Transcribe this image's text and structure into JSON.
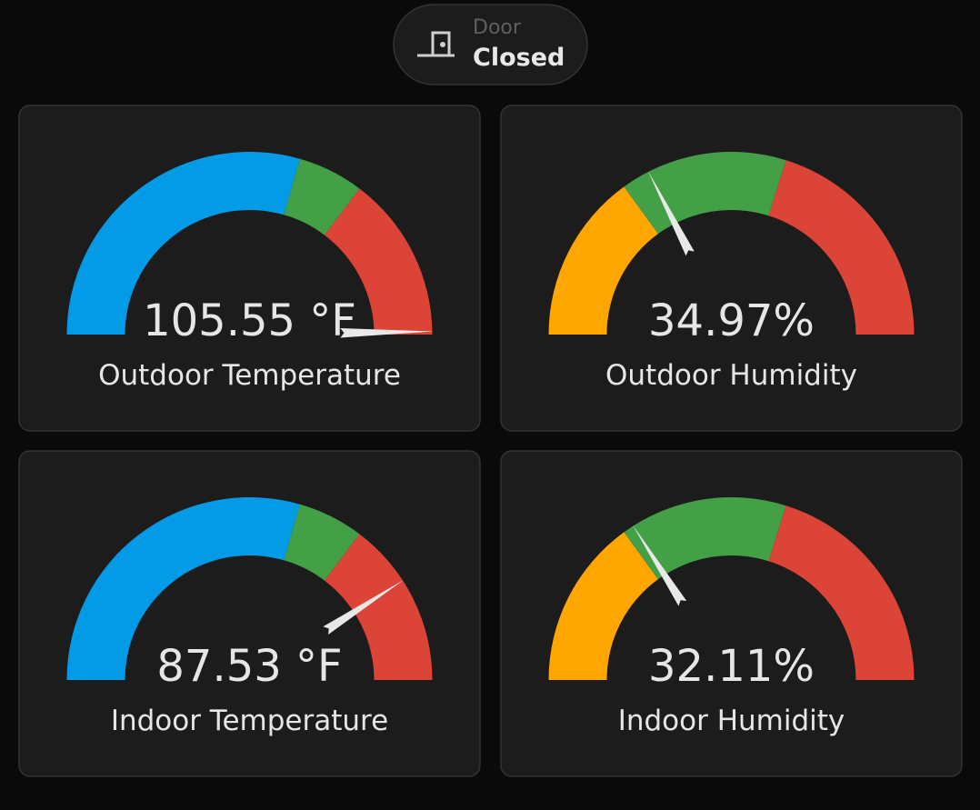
{
  "header": {
    "entity": {
      "name": "Door",
      "state": "Closed"
    }
  },
  "cards": [
    {
      "value": "105.55 °F",
      "name": "Outdoor Temperature"
    },
    {
      "value": "34.97%",
      "name": "Outdoor Humidity"
    },
    {
      "value": "87.53 °F",
      "name": "Indoor Temperature"
    },
    {
      "value": "32.11%",
      "name": "Indoor Humidity"
    }
  ]
}
